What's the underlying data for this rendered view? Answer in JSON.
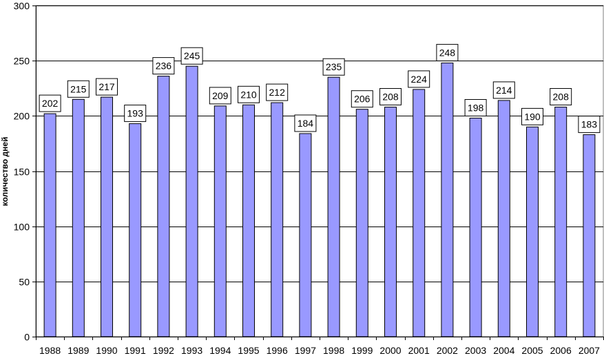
{
  "chart_data": {
    "type": "bar",
    "title": "",
    "xlabel": "",
    "ylabel": "количество дней",
    "ylim": [
      0,
      300
    ],
    "yticks": [
      0,
      50,
      100,
      150,
      200,
      250,
      300
    ],
    "grid": true,
    "categories": [
      "1988",
      "1989",
      "1990",
      "1991",
      "1992",
      "1993",
      "1994",
      "1995",
      "1996",
      "1997",
      "1998",
      "1999",
      "2000",
      "2001",
      "2002",
      "2003",
      "2004",
      "2005",
      "2006",
      "2007"
    ],
    "values": [
      202,
      215,
      217,
      193,
      236,
      245,
      209,
      210,
      212,
      184,
      235,
      206,
      208,
      224,
      248,
      198,
      214,
      190,
      208,
      183
    ],
    "bar_color": "#9999ff",
    "bar_stroke": "#000000"
  }
}
